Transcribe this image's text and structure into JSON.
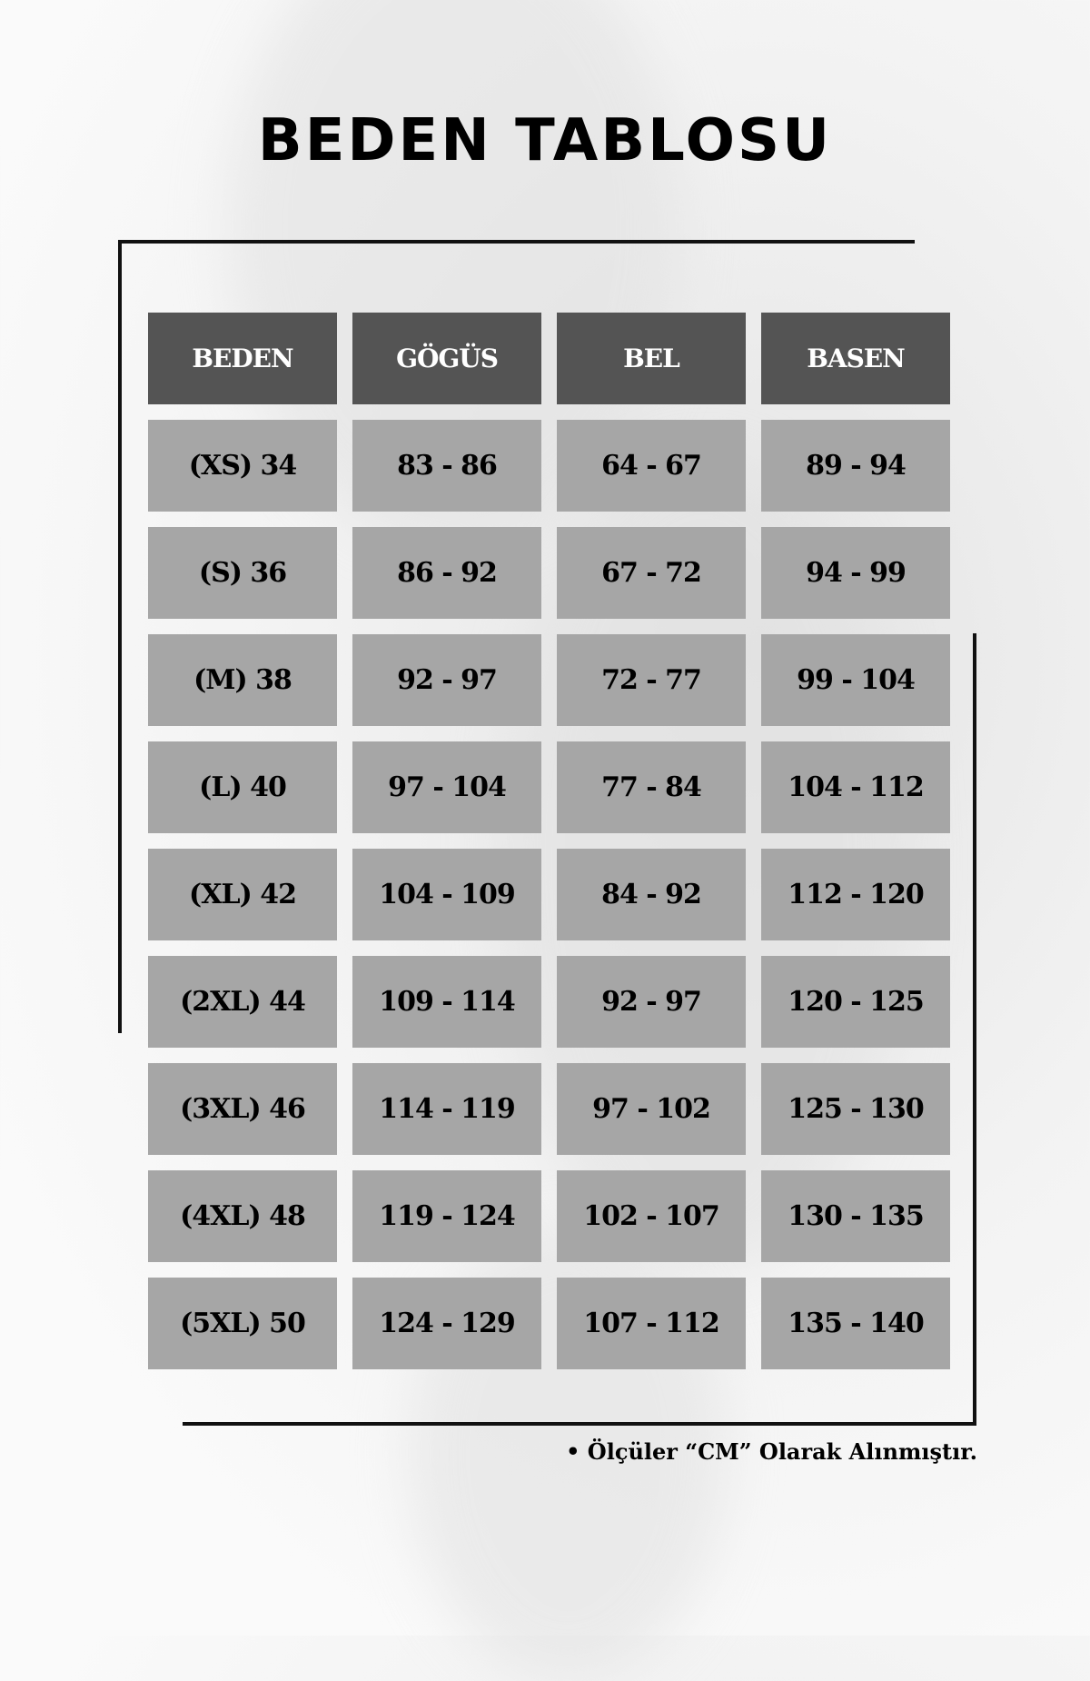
{
  "title": "BEDEN TABLOSU",
  "colors": {
    "header_bg": "#545454",
    "cell_bg": "#a6a6a6",
    "header_text": "#ffffff",
    "cell_text": "#000000"
  },
  "table": {
    "headers": [
      "BEDEN",
      "GÖGÜS",
      "BEL",
      "BASEN"
    ],
    "rows": [
      [
        "(XS) 34",
        "83 - 86",
        "64 - 67",
        "89 - 94"
      ],
      [
        "(S) 36",
        "86 - 92",
        "67 - 72",
        "94 - 99"
      ],
      [
        "(M) 38",
        "92 - 97",
        "72 - 77",
        "99 - 104"
      ],
      [
        "(L) 40",
        "97 - 104",
        "77 - 84",
        "104 - 112"
      ],
      [
        "(XL) 42",
        "104 - 109",
        "84 - 92",
        "112 - 120"
      ],
      [
        "(2XL) 44",
        "109 - 114",
        "92 - 97",
        "120 - 125"
      ],
      [
        "(3XL) 46",
        "114 - 119",
        "97 - 102",
        "125 - 130"
      ],
      [
        "(4XL) 48",
        "119 - 124",
        "102 - 107",
        "130 - 135"
      ],
      [
        "(5XL) 50",
        "124 - 129",
        "107 - 112",
        "135 - 140"
      ]
    ]
  },
  "note": "• Ölçüler “CM” Olarak Alınmıştır."
}
